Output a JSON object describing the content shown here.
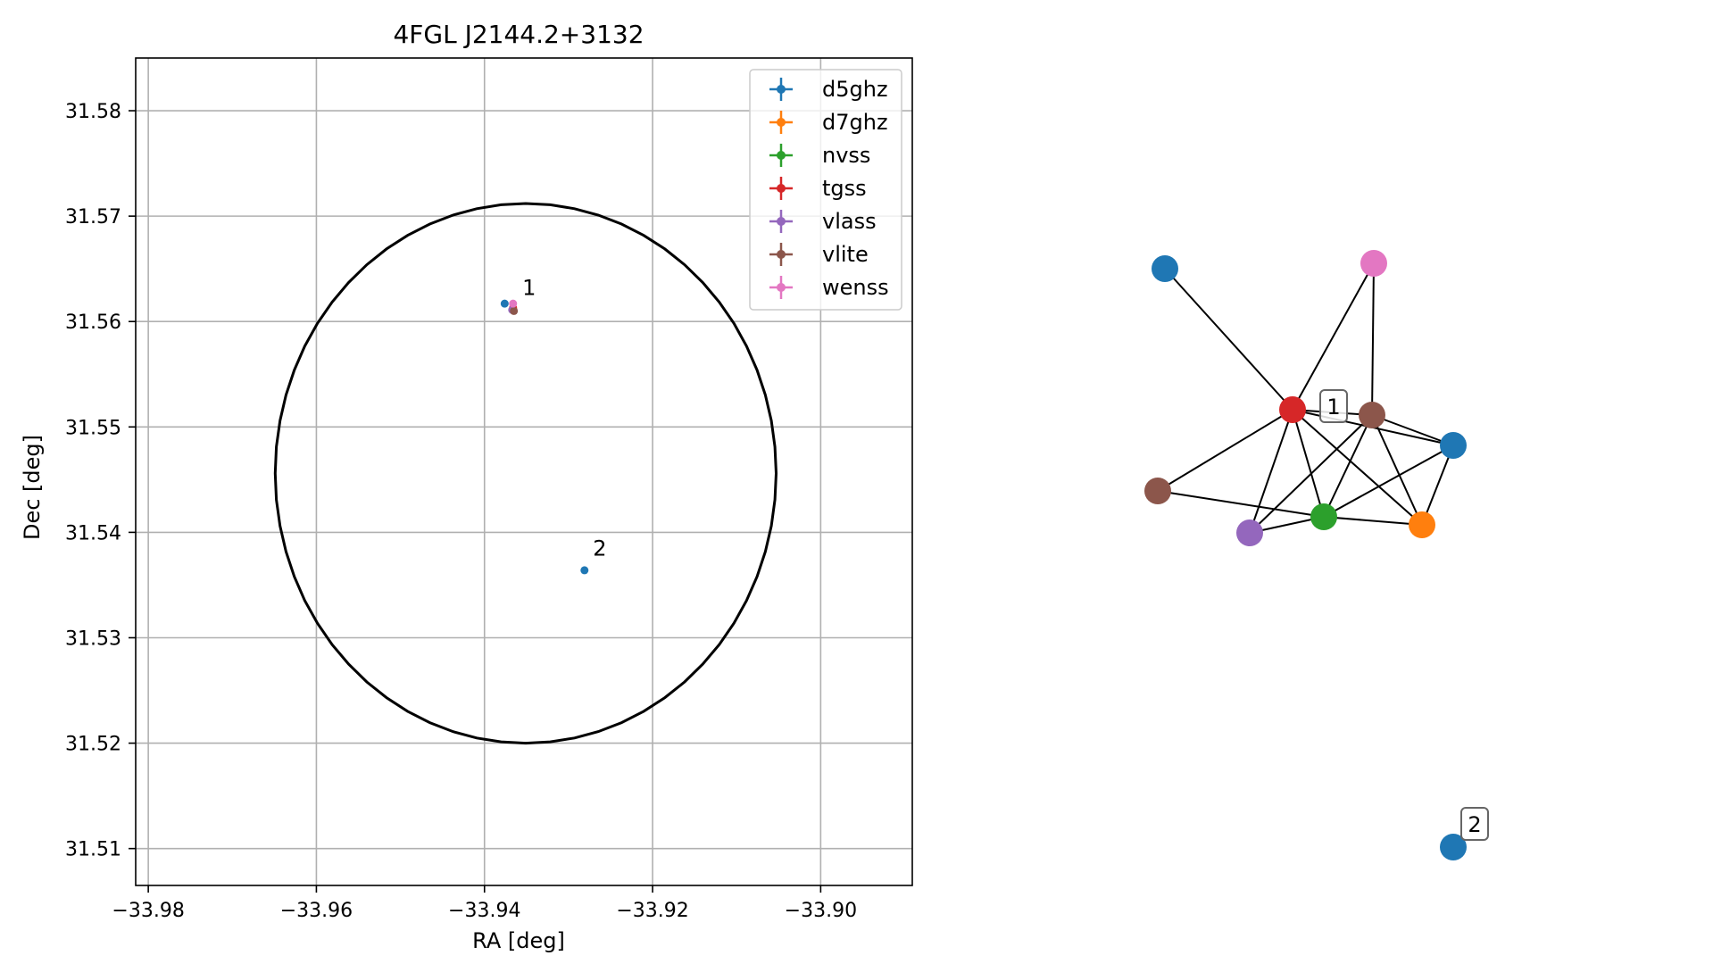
{
  "chart_data": [
    {
      "type": "scatter",
      "title": "4FGL J2144.2+3132",
      "xlabel": "RA [deg]",
      "ylabel": "Dec [deg]",
      "xlim": [
        -33.9815,
        -33.8891
      ],
      "ylim": [
        31.5065,
        31.585
      ],
      "xticks": [
        -33.98,
        -33.96,
        -33.94,
        -33.92,
        -33.9
      ],
      "xtick_labels": [
        "−33.98",
        "−33.96",
        "−33.94",
        "−33.92",
        "−33.90"
      ],
      "yticks": [
        31.51,
        31.52,
        31.53,
        31.54,
        31.55,
        31.56,
        31.57,
        31.58
      ],
      "ytick_labels": [
        "31.51",
        "31.52",
        "31.53",
        "31.54",
        "31.55",
        "31.56",
        "31.57",
        "31.58"
      ],
      "grid": true,
      "legend_position": "top-right",
      "circle": {
        "center": [
          -33.9351,
          31.5456
        ],
        "radius_ra": 0.0298,
        "radius_dec": 0.0256,
        "color": "#000000"
      },
      "series": [
        {
          "name": "d5ghz",
          "color": "#1f77b4",
          "points": [
            [
              -33.9376,
              31.5617
            ],
            [
              -33.9281,
              31.5364
            ]
          ]
        },
        {
          "name": "d7ghz",
          "color": "#ff7f0e",
          "points": [
            [
              -33.9366,
              31.5612
            ]
          ]
        },
        {
          "name": "nvss",
          "color": "#2ca02c",
          "points": [
            [
              -33.9366,
              31.5611
            ]
          ]
        },
        {
          "name": "tgss",
          "color": "#d62728",
          "points": [
            [
              -33.9366,
              31.5613
            ]
          ]
        },
        {
          "name": "vlass",
          "color": "#9467bd",
          "points": [
            [
              -33.9367,
              31.5611
            ]
          ]
        },
        {
          "name": "vlite",
          "color": "#8c564b",
          "points": [
            [
              -33.9365,
              31.561
            ]
          ]
        },
        {
          "name": "wenss",
          "color": "#e377c2",
          "points": [
            [
              -33.9366,
              31.5617
            ]
          ]
        }
      ],
      "annotations": [
        {
          "text": "1",
          "at": [
            -33.9355,
            31.5625
          ]
        },
        {
          "text": "2",
          "at": [
            -33.9271,
            31.5378
          ]
        }
      ]
    },
    {
      "type": "network",
      "nodes": [
        {
          "id": "n_d5_a",
          "survey": "d5ghz",
          "color": "#1f77b4"
        },
        {
          "id": "n_wenss",
          "survey": "wenss",
          "color": "#e377c2"
        },
        {
          "id": "n_tgss",
          "survey": "tgss",
          "color": "#d62728"
        },
        {
          "id": "n_vlite_a",
          "survey": "vlite",
          "color": "#8c564b"
        },
        {
          "id": "n_d5_b",
          "survey": "d5ghz",
          "color": "#1f77b4"
        },
        {
          "id": "n_vlite_b",
          "survey": "vlite",
          "color": "#8c564b"
        },
        {
          "id": "n_vlass",
          "survey": "vlass",
          "color": "#9467bd"
        },
        {
          "id": "n_nvss",
          "survey": "nvss",
          "color": "#2ca02c"
        },
        {
          "id": "n_d7",
          "survey": "d7ghz",
          "color": "#ff7f0e"
        },
        {
          "id": "n_d5_c",
          "survey": "d5ghz",
          "color": "#1f77b4"
        }
      ],
      "edges": [
        [
          "n_d5_a",
          "n_tgss"
        ],
        [
          "n_wenss",
          "n_tgss"
        ],
        [
          "n_wenss",
          "n_vlite_a"
        ],
        [
          "n_tgss",
          "n_vlite_a"
        ],
        [
          "n_tgss",
          "n_d5_b"
        ],
        [
          "n_tgss",
          "n_vlite_b"
        ],
        [
          "n_tgss",
          "n_vlass"
        ],
        [
          "n_tgss",
          "n_nvss"
        ],
        [
          "n_tgss",
          "n_d7"
        ],
        [
          "n_vlite_a",
          "n_d5_b"
        ],
        [
          "n_vlite_a",
          "n_vlass"
        ],
        [
          "n_vlite_a",
          "n_nvss"
        ],
        [
          "n_vlite_a",
          "n_d7"
        ],
        [
          "n_d5_b",
          "n_nvss"
        ],
        [
          "n_d5_b",
          "n_d7"
        ],
        [
          "n_vlite_b",
          "n_nvss"
        ],
        [
          "n_vlass",
          "n_nvss"
        ],
        [
          "n_nvss",
          "n_d7"
        ]
      ],
      "labels": [
        {
          "text": "1"
        },
        {
          "text": "2"
        }
      ]
    }
  ]
}
